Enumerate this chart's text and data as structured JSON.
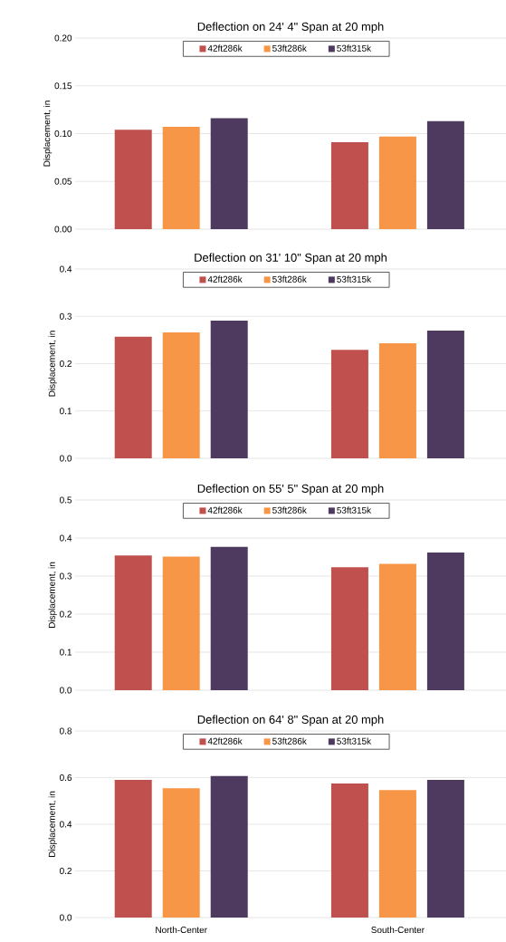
{
  "chart_data": [
    {
      "type": "bar",
      "title": "Deflection on 24' 4\" Span at 20 mph",
      "ylabel": "Displacement, in",
      "categories": [
        null,
        null
      ],
      "tick_labels": "y",
      "grid": "y",
      "legend": "top",
      "ylim": [
        0,
        0.2
      ],
      "yticks": [
        {
          "value": 0,
          "label": "0.00"
        },
        {
          "value": 0.05,
          "label": "0.05"
        },
        {
          "value": 0.1,
          "label": "0.10"
        },
        {
          "value": 0.15,
          "label": "0.15"
        },
        {
          "value": 0.2,
          "label": "0.20"
        }
      ],
      "series": [
        {
          "name": "42ft286k",
          "color": "#c0504d",
          "values": [
            0.104,
            0.091
          ]
        },
        {
          "name": "53ft286k",
          "color": "#f79646",
          "values": [
            0.107,
            0.097
          ]
        },
        {
          "name": "53ft315k",
          "color": "#4f3a5f",
          "values": [
            0.116,
            0.113
          ]
        }
      ]
    },
    {
      "type": "bar",
      "title": "Deflection on 31' 10\" Span at 20 mph",
      "ylabel": "Displacement, in",
      "categories": [
        null,
        null
      ],
      "tick_labels": "y",
      "grid": "y",
      "legend": "top",
      "ylim": [
        0,
        0.4
      ],
      "yticks": [
        {
          "value": 0,
          "label": "0.0"
        },
        0.1,
        0.2,
        0.3,
        0.4
      ],
      "series": [
        {
          "name": "42ft286k",
          "color": "#c0504d",
          "values": [
            0.257,
            0.229
          ]
        },
        {
          "name": "53ft286k",
          "color": "#f79646",
          "values": [
            0.266,
            0.243
          ]
        },
        {
          "name": "53ft315k",
          "color": "#4f3a5f",
          "values": [
            0.291,
            0.27
          ]
        }
      ]
    },
    {
      "type": "bar",
      "title": "Deflection on 55' 5\" Span at 20 mph",
      "ylabel": "Displacement, in",
      "categories": [
        null,
        null
      ],
      "tick_labels": "y",
      "grid": "y",
      "legend": "top",
      "ylim": [
        0,
        0.5
      ],
      "yticks": [
        {
          "value": 0,
          "label": "0.0"
        },
        0.1,
        0.2,
        0.3,
        0.4,
        0.5
      ],
      "series": [
        {
          "name": "42ft286k",
          "color": "#c0504d",
          "values": [
            0.354,
            0.323
          ]
        },
        {
          "name": "53ft286k",
          "color": "#f79646",
          "values": [
            0.351,
            0.332
          ]
        },
        {
          "name": "53ft315k",
          "color": "#4f3a5f",
          "values": [
            0.377,
            0.362
          ]
        }
      ]
    },
    {
      "type": "bar",
      "title": "Deflection on 64' 8\" Span at 20 mph",
      "ylabel": "Displacement, in",
      "categories": [
        "North-Center",
        "South-Center"
      ],
      "grid": "y",
      "legend": "top",
      "ylim": [
        0,
        0.8
      ],
      "yticks": [
        {
          "value": 0,
          "label": "0.0"
        },
        0.2,
        0.4,
        0.6,
        0.8
      ],
      "series": [
        {
          "name": "42ft286k",
          "color": "#c0504d",
          "values": [
            0.59,
            0.575
          ]
        },
        {
          "name": "53ft286k",
          "color": "#f79646",
          "values": [
            0.554,
            0.547
          ]
        },
        {
          "name": "53ft315k",
          "color": "#4f3a5f",
          "values": [
            0.607,
            0.59
          ]
        }
      ]
    }
  ]
}
